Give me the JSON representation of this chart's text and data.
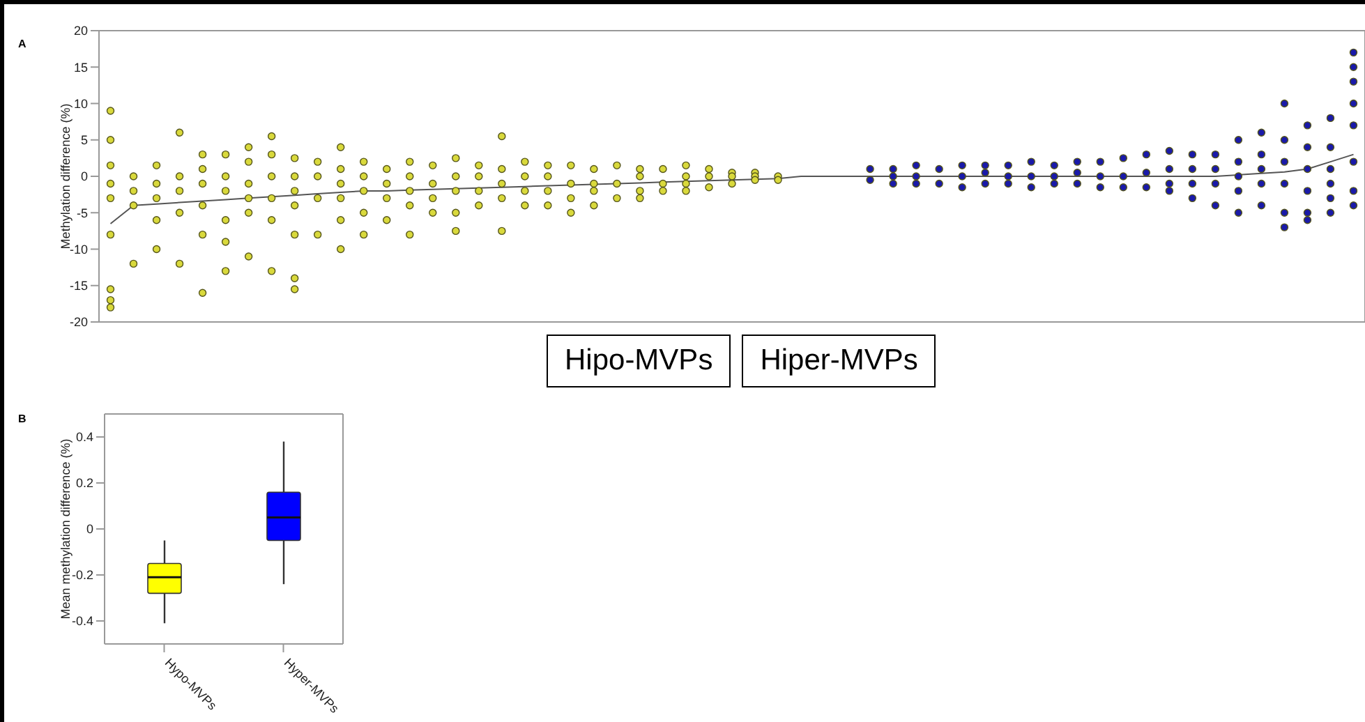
{
  "chart_data": [
    {
      "type": "scatter",
      "title": "A",
      "ylabel": "Methylation difference (%)",
      "categories": [
        null,
        null,
        null,
        null,
        null,
        null,
        null,
        null,
        null,
        null,
        null,
        null,
        null,
        null,
        null,
        null,
        null,
        null,
        null,
        null,
        null,
        null,
        null,
        null,
        null,
        null,
        null,
        null,
        null,
        null,
        null,
        null,
        null,
        null,
        null,
        null,
        null,
        null,
        null,
        null,
        null,
        null,
        null,
        null,
        null,
        null,
        null,
        null,
        null,
        null,
        null,
        null,
        null,
        null,
        null
      ],
      "ylim": [
        -20,
        20
      ],
      "yticks": [
        -20,
        -15,
        -10,
        -5,
        0,
        5,
        10,
        15,
        20
      ],
      "tick_labels": "y",
      "marker": "circle",
      "annotations": [
        "Hipo-MVPs",
        "Hiper-MVPs"
      ],
      "series": [
        {
          "type": "scatter",
          "color": "#d9d93c",
          "values": [
            9,
            0,
            1.5,
            6,
            3,
            3,
            4,
            5.5,
            2.5,
            2,
            4,
            2,
            1,
            2,
            1.5,
            2.5,
            1.5,
            5.5,
            2,
            1.5,
            1.5,
            1,
            1.5,
            1,
            1,
            1.5,
            1,
            0.5,
            0.5,
            0,
            null,
            null,
            null,
            null,
            null,
            null,
            null,
            null,
            null,
            null,
            null,
            null,
            null,
            null,
            null,
            null,
            null,
            null,
            null,
            null,
            null,
            null,
            null,
            null,
            null
          ]
        },
        {
          "type": "scatter",
          "color": "#d9d93c",
          "values": [
            5,
            -2,
            -1,
            0,
            1,
            0,
            2,
            3,
            0,
            0,
            1,
            0,
            -1,
            0,
            -1,
            0,
            0,
            1,
            0,
            0,
            -1,
            -1,
            -1,
            0,
            -1,
            0,
            0,
            0,
            0,
            -0.5,
            null,
            null,
            null,
            null,
            null,
            null,
            null,
            null,
            null,
            null,
            null,
            null,
            null,
            null,
            null,
            null,
            null,
            null,
            null,
            null,
            null,
            null,
            null,
            null,
            null
          ]
        },
        {
          "type": "scatter",
          "color": "#d9d93c",
          "values": [
            1.5,
            -4,
            -3,
            -2,
            -1,
            -2,
            -1,
            0,
            -2,
            -3,
            -1,
            -2,
            -3,
            -2,
            -3,
            -2,
            -2,
            -1,
            -2,
            -2,
            -3,
            -2,
            -3,
            -2,
            -2,
            -1,
            -1.5,
            -1,
            -0.5,
            null,
            null,
            null,
            null,
            null,
            null,
            null,
            null,
            null,
            null,
            null,
            null,
            null,
            null,
            null,
            null,
            null,
            null,
            null,
            null,
            null,
            null,
            null,
            null,
            null,
            null
          ]
        },
        {
          "type": "scatter",
          "color": "#d9d93c",
          "values": [
            -1,
            -12,
            -6,
            -5,
            -4,
            -6,
            -3,
            -3,
            -4,
            -8,
            -3,
            -5,
            -6,
            -4,
            -5,
            -5,
            -4,
            -3,
            -4,
            -4,
            -5,
            -4,
            null,
            -3,
            null,
            -2,
            null,
            null,
            null,
            null,
            null,
            null,
            null,
            null,
            null,
            null,
            null,
            null,
            null,
            null,
            null,
            null,
            null,
            null,
            null,
            null,
            null,
            null,
            null,
            null,
            null,
            null,
            null,
            null,
            null
          ]
        },
        {
          "type": "scatter",
          "color": "#d9d93c",
          "values": [
            -3,
            null,
            -10,
            -12,
            -8,
            -9,
            -5,
            -6,
            -8,
            null,
            -6,
            -8,
            null,
            -8,
            null,
            -7.5,
            null,
            -7.5,
            null,
            null,
            null,
            null,
            null,
            null,
            null,
            null,
            null,
            null,
            null,
            null,
            null,
            null,
            null,
            null,
            null,
            null,
            null,
            null,
            null,
            null,
            null,
            null,
            null,
            null,
            null,
            null,
            null,
            null,
            null,
            null,
            null,
            null,
            null,
            null,
            null
          ]
        },
        {
          "type": "scatter",
          "color": "#d9d93c",
          "values": [
            -8,
            null,
            null,
            null,
            -16,
            -13,
            -11,
            -13,
            -14,
            null,
            -10,
            null,
            null,
            null,
            null,
            null,
            null,
            null,
            null,
            null,
            null,
            null,
            null,
            null,
            null,
            null,
            null,
            null,
            null,
            null,
            null,
            null,
            null,
            null,
            null,
            null,
            null,
            null,
            null,
            null,
            null,
            null,
            null,
            null,
            null,
            null,
            null,
            null,
            null,
            null,
            null,
            null,
            null,
            null,
            null
          ]
        },
        {
          "type": "scatter",
          "color": "#d9d93c",
          "values": [
            -15.5,
            null,
            null,
            null,
            null,
            null,
            null,
            null,
            -15.5,
            null,
            null,
            null,
            null,
            null,
            null,
            null,
            null,
            null,
            null,
            null,
            null,
            null,
            null,
            null,
            null,
            null,
            null,
            null,
            null,
            null,
            null,
            null,
            null,
            null,
            null,
            null,
            null,
            null,
            null,
            null,
            null,
            null,
            null,
            null,
            null,
            null,
            null,
            null,
            null,
            null,
            null,
            null,
            null,
            null,
            null
          ]
        },
        {
          "type": "scatter",
          "color": "#d9d93c",
          "values": [
            -17,
            null,
            null,
            null,
            null,
            null,
            null,
            null,
            null,
            null,
            null,
            null,
            null,
            null,
            null,
            null,
            null,
            null,
            null,
            null,
            null,
            null,
            null,
            null,
            null,
            null,
            null,
            null,
            null,
            null,
            null,
            null,
            null,
            null,
            null,
            null,
            null,
            null,
            null,
            null,
            null,
            null,
            null,
            null,
            null,
            null,
            null,
            null,
            null,
            null,
            null,
            null,
            null,
            null,
            null
          ]
        },
        {
          "type": "scatter",
          "color": "#d9d93c",
          "values": [
            -18,
            null,
            null,
            null,
            null,
            null,
            null,
            null,
            null,
            null,
            null,
            null,
            null,
            null,
            null,
            null,
            null,
            null,
            null,
            null,
            null,
            null,
            null,
            null,
            null,
            null,
            null,
            null,
            null,
            null,
            null,
            null,
            null,
            null,
            null,
            null,
            null,
            null,
            null,
            null,
            null,
            null,
            null,
            null,
            null,
            null,
            null,
            null,
            null,
            null,
            null,
            null,
            null,
            null,
            null
          ]
        },
        {
          "type": "scatter",
          "color": "#1a1aa8",
          "values": [
            null,
            null,
            null,
            null,
            null,
            null,
            null,
            null,
            null,
            null,
            null,
            null,
            null,
            null,
            null,
            null,
            null,
            null,
            null,
            null,
            null,
            null,
            null,
            null,
            null,
            null,
            null,
            null,
            null,
            null,
            null,
            null,
            null,
            1,
            1,
            1.5,
            1,
            1.5,
            1.5,
            1.5,
            2,
            1.5,
            2,
            2,
            2.5,
            3,
            3.5,
            3,
            3,
            5,
            6,
            10,
            7,
            8,
            17
          ]
        },
        {
          "type": "scatter",
          "color": "#1a1aa8",
          "values": [
            null,
            null,
            null,
            null,
            null,
            null,
            null,
            null,
            null,
            null,
            null,
            null,
            null,
            null,
            null,
            null,
            null,
            null,
            null,
            null,
            null,
            null,
            null,
            null,
            null,
            null,
            null,
            null,
            null,
            null,
            null,
            null,
            null,
            -0.5,
            0,
            0,
            -1,
            0,
            0.5,
            0,
            0,
            0,
            0.5,
            0,
            0,
            0.5,
            1,
            1,
            1,
            2,
            3,
            5,
            4,
            4,
            15
          ]
        },
        {
          "type": "scatter",
          "color": "#1a1aa8",
          "values": [
            null,
            null,
            null,
            null,
            null,
            null,
            null,
            null,
            null,
            null,
            null,
            null,
            null,
            null,
            null,
            null,
            null,
            null,
            null,
            null,
            null,
            null,
            null,
            null,
            null,
            null,
            null,
            null,
            null,
            null,
            null,
            null,
            null,
            null,
            -1,
            -1,
            null,
            -1.5,
            -1,
            -1,
            -1.5,
            -1,
            -1,
            -1.5,
            -1.5,
            -1.5,
            -1,
            -1,
            -1,
            0,
            1,
            2,
            1,
            1,
            13
          ]
        },
        {
          "type": "scatter",
          "color": "#1a1aa8",
          "values": [
            null,
            null,
            null,
            null,
            null,
            null,
            null,
            null,
            null,
            null,
            null,
            null,
            null,
            null,
            null,
            null,
            null,
            null,
            null,
            null,
            null,
            null,
            null,
            null,
            null,
            null,
            null,
            null,
            null,
            null,
            null,
            null,
            null,
            null,
            null,
            null,
            null,
            null,
            null,
            null,
            null,
            null,
            null,
            null,
            null,
            null,
            -2,
            -3,
            -4,
            -2,
            -1,
            -1,
            -2,
            -1,
            10
          ]
        },
        {
          "type": "scatter",
          "color": "#1a1aa8",
          "values": [
            null,
            null,
            null,
            null,
            null,
            null,
            null,
            null,
            null,
            null,
            null,
            null,
            null,
            null,
            null,
            null,
            null,
            null,
            null,
            null,
            null,
            null,
            null,
            null,
            null,
            null,
            null,
            null,
            null,
            null,
            null,
            null,
            null,
            null,
            null,
            null,
            null,
            null,
            null,
            null,
            null,
            null,
            null,
            null,
            null,
            null,
            null,
            null,
            null,
            -5,
            -4,
            -5,
            -5,
            -3,
            7
          ]
        },
        {
          "type": "scatter",
          "color": "#1a1aa8",
          "values": [
            null,
            null,
            null,
            null,
            null,
            null,
            null,
            null,
            null,
            null,
            null,
            null,
            null,
            null,
            null,
            null,
            null,
            null,
            null,
            null,
            null,
            null,
            null,
            null,
            null,
            null,
            null,
            null,
            null,
            null,
            null,
            null,
            null,
            null,
            null,
            null,
            null,
            null,
            null,
            null,
            null,
            null,
            null,
            null,
            null,
            null,
            null,
            null,
            null,
            null,
            null,
            -7,
            -6,
            -5,
            2
          ]
        },
        {
          "type": "scatter",
          "color": "#1a1aa8",
          "values": [
            null,
            null,
            null,
            null,
            null,
            null,
            null,
            null,
            null,
            null,
            null,
            null,
            null,
            null,
            null,
            null,
            null,
            null,
            null,
            null,
            null,
            null,
            null,
            null,
            null,
            null,
            null,
            null,
            null,
            null,
            null,
            null,
            null,
            null,
            null,
            null,
            null,
            null,
            null,
            null,
            null,
            null,
            null,
            null,
            null,
            null,
            null,
            null,
            null,
            null,
            null,
            null,
            null,
            null,
            -2
          ]
        },
        {
          "type": "scatter",
          "color": "#1a1aa8",
          "values": [
            null,
            null,
            null,
            null,
            null,
            null,
            null,
            null,
            null,
            null,
            null,
            null,
            null,
            null,
            null,
            null,
            null,
            null,
            null,
            null,
            null,
            null,
            null,
            null,
            null,
            null,
            null,
            null,
            null,
            null,
            null,
            null,
            null,
            null,
            null,
            null,
            null,
            null,
            null,
            null,
            null,
            null,
            null,
            null,
            null,
            null,
            null,
            null,
            null,
            null,
            null,
            null,
            null,
            null,
            -4
          ]
        },
        {
          "type": "line",
          "color": "#555555",
          "marker": "none",
          "line_style": "solid",
          "values": [
            -6.5,
            -4,
            -3.8,
            -3.6,
            -3.4,
            -3.2,
            -3,
            -2.8,
            -2.6,
            -2.4,
            -2.2,
            -2,
            -2,
            -1.9,
            -1.8,
            -1.7,
            -1.6,
            -1.5,
            -1.4,
            -1.3,
            -1.2,
            -1.1,
            -1,
            -0.9,
            -0.8,
            -0.7,
            -0.6,
            -0.5,
            -0.4,
            -0.3,
            0,
            0,
            0,
            0,
            0,
            0,
            0,
            0,
            0,
            0,
            0,
            0,
            0,
            0,
            0,
            0,
            0,
            0,
            0,
            0.2,
            0.4,
            0.6,
            1,
            2,
            3
          ]
        }
      ]
    },
    {
      "type": "box",
      "title": "B",
      "ylabel": "Mean methylation difference (%)",
      "categories": [
        "Hypo-MVPs",
        "Hyper-MVPs"
      ],
      "colors": [
        "#ffff00",
        "#0000ff"
      ],
      "ylim": [
        -0.5,
        0.5
      ],
      "yticks": [
        -0.4,
        -0.2,
        0,
        0.2,
        0.4
      ],
      "boxes": [
        {
          "low": -0.41,
          "q1": -0.28,
          "median": -0.21,
          "q3": -0.15,
          "high": -0.05
        },
        {
          "low": -0.24,
          "q1": -0.05,
          "median": 0.05,
          "q3": 0.16,
          "high": 0.38
        }
      ]
    }
  ]
}
